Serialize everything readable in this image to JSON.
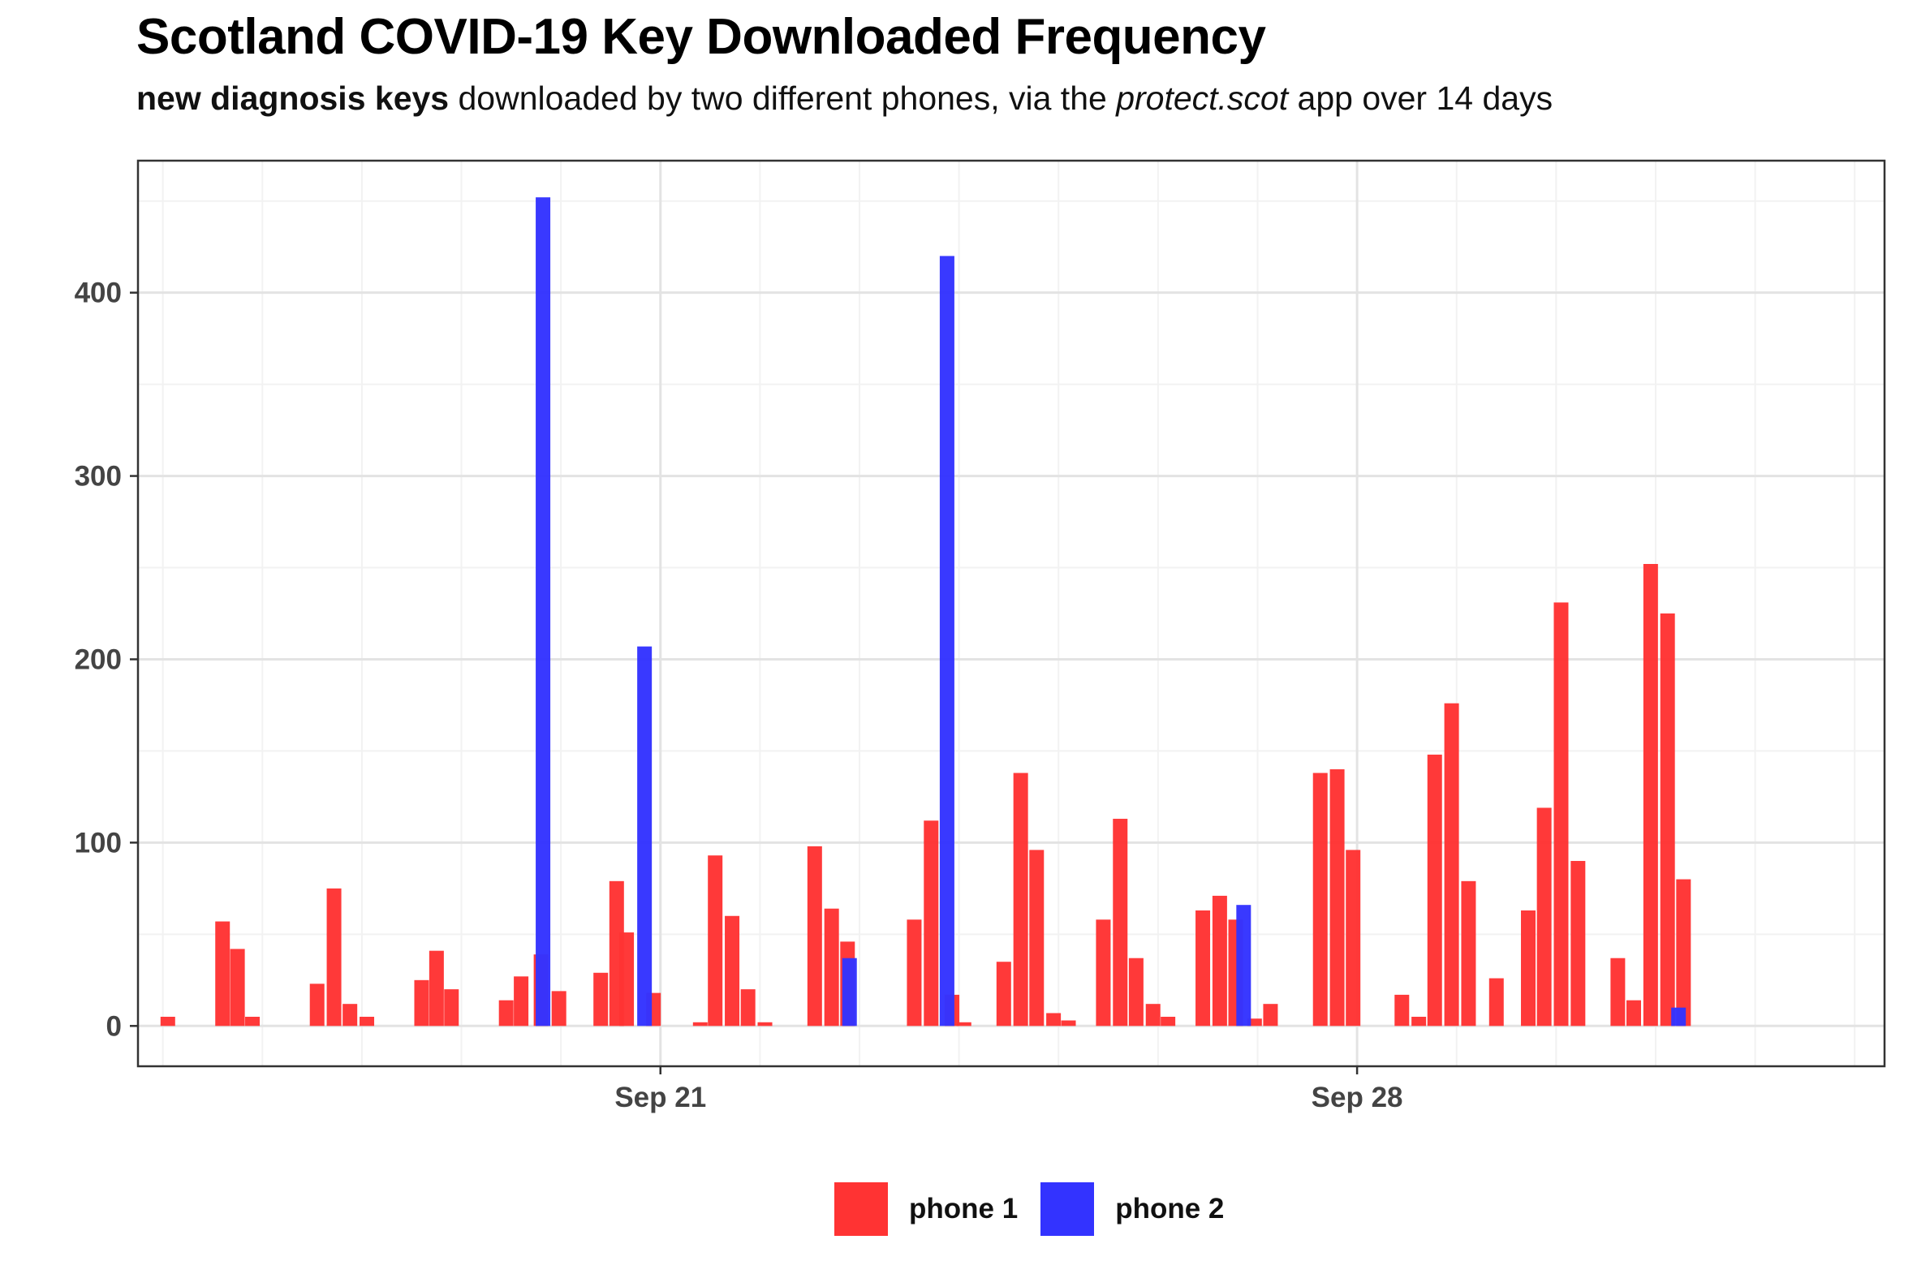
{
  "title": "Scotland COVID-19 Key Downloaded Frequency",
  "subtitle": {
    "bold": "new diagnosis keys",
    "part1": " downloaded by two different phones, via the ",
    "italic": "protect.scot",
    "part2": "  app over 14 days"
  },
  "chart_data": {
    "type": "bar",
    "title": "Scotland COVID-19 Key Downloaded Frequency",
    "xlabel": "",
    "ylabel": "",
    "x_axis": "time",
    "x_ticks": [
      {
        "label": "Sep 21",
        "day": 21
      },
      {
        "label": "Sep 28",
        "day": 28
      }
    ],
    "y_ticks": [
      0,
      100,
      200,
      300,
      400
    ],
    "xlim": [
      15.75,
      33.3
    ],
    "ylim": [
      -22,
      472
    ],
    "grid": true,
    "legend_position": "bottom",
    "series": [
      {
        "name": "phone 1",
        "color": "#ff3333",
        "points": [
          {
            "x": 16.05,
            "y": 5
          },
          {
            "x": 16.6,
            "y": 57
          },
          {
            "x": 16.75,
            "y": 42
          },
          {
            "x": 16.9,
            "y": 5
          },
          {
            "x": 17.55,
            "y": 23
          },
          {
            "x": 17.72,
            "y": 75
          },
          {
            "x": 17.88,
            "y": 12
          },
          {
            "x": 18.05,
            "y": 5
          },
          {
            "x": 18.6,
            "y": 25
          },
          {
            "x": 18.75,
            "y": 41
          },
          {
            "x": 18.9,
            "y": 20
          },
          {
            "x": 19.45,
            "y": 14
          },
          {
            "x": 19.6,
            "y": 27
          },
          {
            "x": 19.8,
            "y": 39
          },
          {
            "x": 19.98,
            "y": 19
          },
          {
            "x": 20.4,
            "y": 29
          },
          {
            "x": 20.56,
            "y": 79
          },
          {
            "x": 20.66,
            "y": 51
          },
          {
            "x": 20.93,
            "y": 18
          },
          {
            "x": 21.4,
            "y": 2
          },
          {
            "x": 21.55,
            "y": 93
          },
          {
            "x": 21.72,
            "y": 60
          },
          {
            "x": 21.88,
            "y": 20
          },
          {
            "x": 22.05,
            "y": 2
          },
          {
            "x": 22.55,
            "y": 98
          },
          {
            "x": 22.72,
            "y": 64
          },
          {
            "x": 22.88,
            "y": 46
          },
          {
            "x": 23.55,
            "y": 58
          },
          {
            "x": 23.72,
            "y": 112
          },
          {
            "x": 23.93,
            "y": 17
          },
          {
            "x": 24.05,
            "y": 2
          },
          {
            "x": 24.45,
            "y": 35
          },
          {
            "x": 24.62,
            "y": 138
          },
          {
            "x": 24.78,
            "y": 96
          },
          {
            "x": 24.95,
            "y": 7
          },
          {
            "x": 25.1,
            "y": 3
          },
          {
            "x": 25.45,
            "y": 58
          },
          {
            "x": 25.62,
            "y": 113
          },
          {
            "x": 25.78,
            "y": 37
          },
          {
            "x": 25.95,
            "y": 12
          },
          {
            "x": 26.1,
            "y": 5
          },
          {
            "x": 26.45,
            "y": 63
          },
          {
            "x": 26.62,
            "y": 71
          },
          {
            "x": 26.78,
            "y": 58
          },
          {
            "x": 26.97,
            "y": 4
          },
          {
            "x": 27.13,
            "y": 12
          },
          {
            "x": 27.63,
            "y": 138
          },
          {
            "x": 27.8,
            "y": 140
          },
          {
            "x": 27.96,
            "y": 96
          },
          {
            "x": 28.45,
            "y": 17
          },
          {
            "x": 28.62,
            "y": 5
          },
          {
            "x": 28.78,
            "y": 148
          },
          {
            "x": 28.95,
            "y": 176
          },
          {
            "x": 29.12,
            "y": 79
          },
          {
            "x": 29.4,
            "y": 26
          },
          {
            "x": 29.72,
            "y": 63
          },
          {
            "x": 29.88,
            "y": 119
          },
          {
            "x": 30.05,
            "y": 231
          },
          {
            "x": 30.22,
            "y": 90
          },
          {
            "x": 30.62,
            "y": 37
          },
          {
            "x": 30.78,
            "y": 14
          },
          {
            "x": 30.95,
            "y": 252
          },
          {
            "x": 31.12,
            "y": 225
          },
          {
            "x": 31.28,
            "y": 80
          }
        ]
      },
      {
        "name": "phone 2",
        "color": "#3333ff",
        "points": [
          {
            "x": 19.82,
            "y": 452
          },
          {
            "x": 20.84,
            "y": 207
          },
          {
            "x": 22.9,
            "y": 37
          },
          {
            "x": 23.88,
            "y": 420
          },
          {
            "x": 26.86,
            "y": 66
          },
          {
            "x": 31.23,
            "y": 10
          }
        ]
      }
    ]
  },
  "legend": [
    {
      "label": "phone 1",
      "color": "#ff3333"
    },
    {
      "label": "phone 2",
      "color": "#3333ff"
    }
  ]
}
